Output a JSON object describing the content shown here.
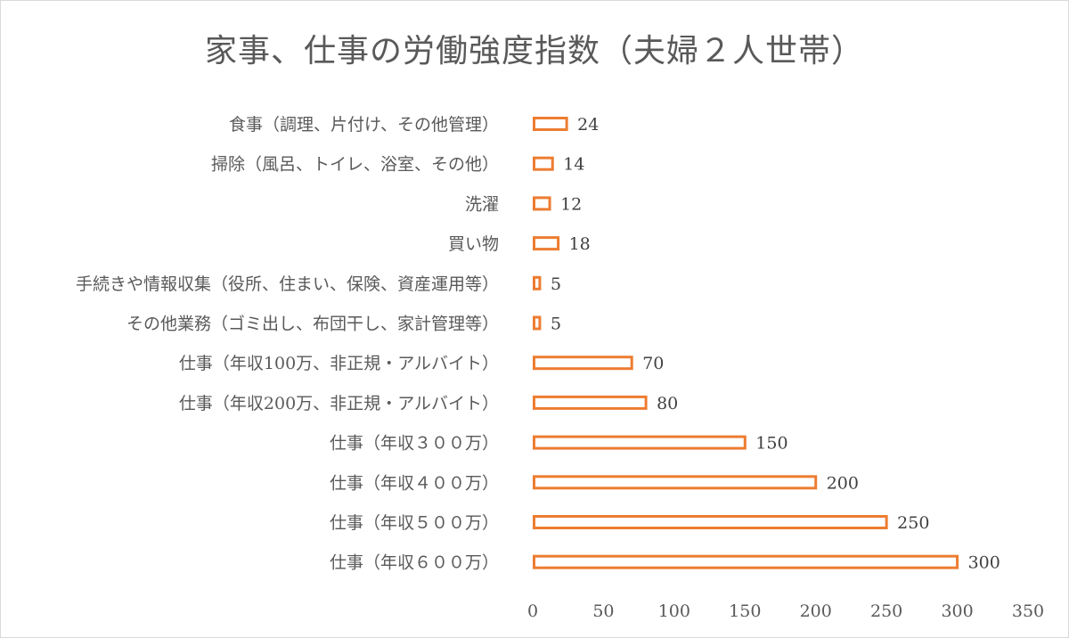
{
  "chart_data": {
    "type": "bar",
    "orientation": "horizontal",
    "title": "家事、仕事の労働強度指数（夫婦２人世帯）",
    "categories": [
      "食事（調理、片付け、その他管理）",
      "掃除（風呂、トイレ、浴室、その他）",
      "洗濯",
      "買い物",
      "手続きや情報収集（役所、住まい、保険、資産運用等）",
      "その他業務（ゴミ出し、布団干し、家計管理等）",
      "仕事（年収100万、非正規・アルバイト）",
      "仕事（年収200万、非正規・アルバイト）",
      "仕事（年収３００万）",
      "仕事（年収４００万）",
      "仕事（年収５００万）",
      "仕事（年収６００万）"
    ],
    "values": [
      24,
      14,
      12,
      18,
      5,
      5,
      70,
      80,
      150,
      200,
      250,
      300
    ],
    "xlim": [
      0,
      350
    ],
    "xticks": [
      0,
      50,
      100,
      150,
      200,
      250,
      300,
      350
    ],
    "grid": false,
    "legend": "none",
    "data_labels": true,
    "colors": {
      "bar_outline": "#ed7d31",
      "bar_fill": "#ffffff"
    }
  }
}
